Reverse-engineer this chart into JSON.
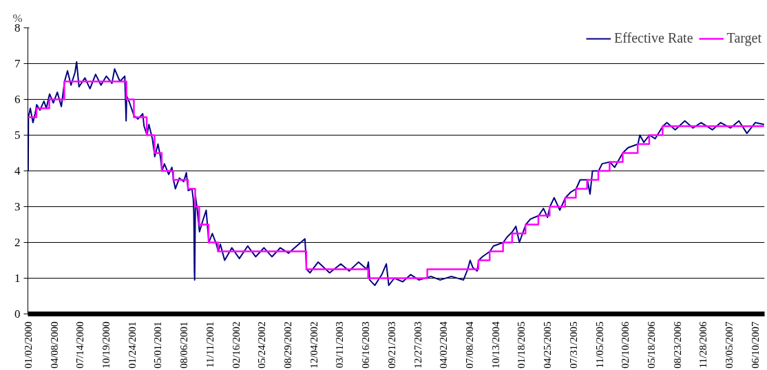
{
  "chart_data": {
    "type": "line",
    "ylabel": "%",
    "xlim": [
      "2000-01-01",
      "2007-07-15"
    ],
    "ylim": [
      0,
      8
    ],
    "yticks": [
      0,
      1,
      2,
      3,
      4,
      5,
      6,
      7,
      8
    ],
    "xticks": [
      {
        "value": "2000-01-02",
        "label": "01/02/2000"
      },
      {
        "value": "2000-04-08",
        "label": "04/08/2000"
      },
      {
        "value": "2000-07-14",
        "label": "07/14/2000"
      },
      {
        "value": "2000-10-19",
        "label": "10/19/2000"
      },
      {
        "value": "2001-01-24",
        "label": "01/24/2001"
      },
      {
        "value": "2001-05-01",
        "label": "05/01/2001"
      },
      {
        "value": "2001-08-06",
        "label": "08/06/2001"
      },
      {
        "value": "2001-11-11",
        "label": "11/11/2001"
      },
      {
        "value": "2002-02-16",
        "label": "02/16/2002"
      },
      {
        "value": "2002-05-24",
        "label": "05/24/2002"
      },
      {
        "value": "2002-08-29",
        "label": "08/29/2002"
      },
      {
        "value": "2002-12-04",
        "label": "12/04/2002"
      },
      {
        "value": "2003-03-11",
        "label": "03/11/2003"
      },
      {
        "value": "2003-06-16",
        "label": "06/16/2003"
      },
      {
        "value": "2003-09-21",
        "label": "09/21/2003"
      },
      {
        "value": "2003-12-27",
        "label": "12/27/2003"
      },
      {
        "value": "2004-04-02",
        "label": "04/02/2004"
      },
      {
        "value": "2004-07-08",
        "label": "07/08/2004"
      },
      {
        "value": "2004-10-13",
        "label": "10/13/2004"
      },
      {
        "value": "2005-01-18",
        "label": "01/18/2005"
      },
      {
        "value": "2005-04-25",
        "label": "04/25/2005"
      },
      {
        "value": "2005-07-31",
        "label": "07/31/2005"
      },
      {
        "value": "2005-11-05",
        "label": "11/05/2005"
      },
      {
        "value": "2006-02-10",
        "label": "02/10/2006"
      },
      {
        "value": "2006-05-18",
        "label": "05/18/2006"
      },
      {
        "value": "2006-08-23",
        "label": "08/23/2006"
      },
      {
        "value": "2006-11-28",
        "label": "11/28/2006"
      },
      {
        "value": "2007-03-05",
        "label": "03/05/2007"
      },
      {
        "value": "2007-06-10",
        "label": "06/10/2007"
      }
    ],
    "grid": "y",
    "legend": "top right",
    "marker": "none",
    "line_style": "solid",
    "series": [
      {
        "name": "Effective Rate",
        "color": "#000080",
        "x": [
          "2000-01-02",
          "2000-01-03",
          "2000-01-10",
          "2000-01-20",
          "2000-01-28",
          "2000-02-03",
          "2000-02-15",
          "2000-03-01",
          "2000-03-10",
          "2000-03-22",
          "2000-04-05",
          "2000-04-20",
          "2000-05-05",
          "2000-05-17",
          "2000-05-28",
          "2000-06-10",
          "2000-06-25",
          "2000-07-01",
          "2000-07-10",
          "2000-08-01",
          "2000-08-20",
          "2000-09-10",
          "2000-09-30",
          "2000-10-20",
          "2000-11-10",
          "2000-11-20",
          "2000-12-10",
          "2000-12-28",
          "2001-01-02",
          "2001-01-04",
          "2001-01-15",
          "2001-01-31",
          "2001-02-15",
          "2001-03-05",
          "2001-03-10",
          "2001-03-21",
          "2001-03-28",
          "2001-04-10",
          "2001-04-19",
          "2001-05-01",
          "2001-05-10",
          "2001-05-16",
          "2001-05-25",
          "2001-06-10",
          "2001-06-22",
          "2001-06-28",
          "2001-07-05",
          "2001-07-20",
          "2001-08-05",
          "2001-08-15",
          "2001-08-22",
          "2001-09-05",
          "2001-09-10",
          "2001-09-12",
          "2001-09-14",
          "2001-09-15",
          "2001-09-18",
          "2001-09-25",
          "2001-10-03",
          "2001-10-15",
          "2001-10-28",
          "2001-11-07",
          "2001-11-20",
          "2001-12-05",
          "2001-12-12",
          "2001-12-20",
          "2002-01-05",
          "2002-02-01",
          "2002-03-01",
          "2002-04-01",
          "2002-05-01",
          "2002-06-01",
          "2002-07-01",
          "2002-08-01",
          "2002-09-01",
          "2002-10-01",
          "2002-11-01",
          "2002-11-07",
          "2002-11-20",
          "2002-12-20",
          "2003-02-01",
          "2003-03-15",
          "2003-04-15",
          "2003-05-20",
          "2003-06-20",
          "2003-06-26",
          "2003-07-01",
          "2003-07-20",
          "2003-08-15",
          "2003-09-01",
          "2003-09-10",
          "2003-10-01",
          "2003-11-01",
          "2003-12-01",
          "2004-01-01",
          "2004-02-15",
          "2004-03-20",
          "2004-05-01",
          "2004-06-15",
          "2004-07-01",
          "2004-07-10",
          "2004-07-20",
          "2004-08-05",
          "2004-08-11",
          "2004-08-25",
          "2004-09-22",
          "2004-10-05",
          "2004-11-11",
          "2004-11-25",
          "2004-12-15",
          "2004-12-28",
          "2005-01-10",
          "2005-02-03",
          "2005-02-20",
          "2005-03-23",
          "2005-04-10",
          "2005-04-25",
          "2005-05-04",
          "2005-05-20",
          "2005-06-10",
          "2005-07-01",
          "2005-07-20",
          "2005-08-10",
          "2005-08-25",
          "2005-09-21",
          "2005-10-01",
          "2005-10-10",
          "2005-11-02",
          "2005-11-15",
          "2005-12-14",
          "2006-01-01",
          "2006-01-31",
          "2006-02-20",
          "2006-03-29",
          "2006-04-05",
          "2006-04-20",
          "2006-05-11",
          "2006-06-01",
          "2006-06-30",
          "2006-07-15",
          "2006-08-15",
          "2006-09-20",
          "2006-10-20",
          "2006-11-20",
          "2007-01-01",
          "2007-02-01",
          "2007-03-10",
          "2007-04-10",
          "2007-05-10",
          "2007-06-10",
          "2007-07-13"
        ],
        "values": [
          4.0,
          5.5,
          5.75,
          5.35,
          5.6,
          5.85,
          5.7,
          5.95,
          5.75,
          6.15,
          5.9,
          6.2,
          5.8,
          6.5,
          6.8,
          6.4,
          6.75,
          7.05,
          6.35,
          6.6,
          6.3,
          6.7,
          6.4,
          6.65,
          6.45,
          6.85,
          6.5,
          6.65,
          5.4,
          6.1,
          5.9,
          5.55,
          5.45,
          5.6,
          5.25,
          5.0,
          5.3,
          4.9,
          4.4,
          4.75,
          4.4,
          4.0,
          4.2,
          3.9,
          4.1,
          3.75,
          3.5,
          3.8,
          3.7,
          3.95,
          3.45,
          3.5,
          3.2,
          2.8,
          1.2,
          0.95,
          3.3,
          2.9,
          2.3,
          2.6,
          2.9,
          2.0,
          2.25,
          1.95,
          1.75,
          1.95,
          1.5,
          1.85,
          1.55,
          1.9,
          1.6,
          1.85,
          1.6,
          1.85,
          1.7,
          1.9,
          2.1,
          1.25,
          1.15,
          1.45,
          1.15,
          1.4,
          1.2,
          1.45,
          1.25,
          1.45,
          0.95,
          0.8,
          1.1,
          1.4,
          0.8,
          1.0,
          0.9,
          1.1,
          0.95,
          1.05,
          0.95,
          1.05,
          0.95,
          1.25,
          1.5,
          1.3,
          1.2,
          1.5,
          1.6,
          1.75,
          1.9,
          2.0,
          2.15,
          2.3,
          2.45,
          2.0,
          2.5,
          2.65,
          2.75,
          2.95,
          2.7,
          3.0,
          3.25,
          2.9,
          3.25,
          3.4,
          3.5,
          3.75,
          3.75,
          3.35,
          4.0,
          4.0,
          4.2,
          4.25,
          4.1,
          4.5,
          4.65,
          4.75,
          5.0,
          4.8,
          5.0,
          4.9,
          5.25,
          5.35,
          5.15,
          5.4,
          5.2,
          5.35,
          5.15,
          5.35,
          5.2,
          5.4,
          5.05,
          5.35,
          5.3
        ]
      },
      {
        "name": "Target",
        "color": "#ff00ff",
        "type": "step",
        "x": [
          "2000-01-02",
          "2000-02-02",
          "2000-03-21",
          "2000-05-16",
          "2001-01-03",
          "2001-01-31",
          "2001-03-20",
          "2001-04-18",
          "2001-05-15",
          "2001-06-27",
          "2001-08-21",
          "2001-09-17",
          "2001-10-02",
          "2001-11-06",
          "2001-12-11",
          "2002-11-06",
          "2003-06-25",
          "2004-02-01",
          "2004-08-10",
          "2004-09-21",
          "2004-11-10",
          "2004-12-14",
          "2005-02-02",
          "2005-03-22",
          "2005-05-03",
          "2005-06-30",
          "2005-08-09",
          "2005-09-20",
          "2005-11-01",
          "2005-12-13",
          "2006-01-31",
          "2006-03-28",
          "2006-05-10",
          "2006-06-29",
          "2007-07-13"
        ],
        "values": [
          5.5,
          5.75,
          6.0,
          6.5,
          6.0,
          5.5,
          5.0,
          4.5,
          4.0,
          3.75,
          3.5,
          3.0,
          2.5,
          2.0,
          1.75,
          1.25,
          1.0,
          1.25,
          1.5,
          1.75,
          2.0,
          2.25,
          2.5,
          2.75,
          3.0,
          3.25,
          3.5,
          3.75,
          4.0,
          4.25,
          4.5,
          4.75,
          5.0,
          5.25,
          5.25
        ]
      }
    ]
  }
}
